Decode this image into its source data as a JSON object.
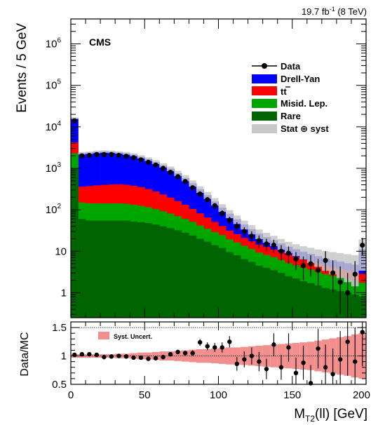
{
  "header": {
    "lumi_main": "19.7 fb",
    "lumi_sup": "-1",
    "lumi_energy": " (8 TeV)",
    "experiment": "CMS"
  },
  "colors": {
    "data": "#000000",
    "drell_yan": "#0000ff",
    "ttbar": "#ff0000",
    "misid": "#00a600",
    "rare": "#006400",
    "stat_syst": "#c8c8c8",
    "ratio_band": "#f28e8e"
  },
  "legend": {
    "data": "Data",
    "drell_yan": "Drell-Yan",
    "ttbar": "tt",
    "misid": "Misid. Lep.",
    "rare": "Rare",
    "stat_syst": "Stat ⊕ syst",
    "syst_uncert": "Syst. Uncert."
  },
  "chart_data": [
    {
      "type": "area",
      "ylabel": "Events / 5 GeV",
      "xlim": [
        0,
        200
      ],
      "ylim": [
        0.25,
        4000000
      ],
      "yscale": "log",
      "y_ticks": [
        {
          "v": 1,
          "label": "1"
        },
        {
          "v": 10,
          "label": "10"
        },
        {
          "v": 100,
          "label": "10",
          "sup": "2"
        },
        {
          "v": 1000,
          "label": "10",
          "sup": "3"
        },
        {
          "v": 10000,
          "label": "10",
          "sup": "4"
        },
        {
          "v": 100000,
          "label": "10",
          "sup": "5"
        },
        {
          "v": 1000000,
          "label": "10",
          "sup": "6"
        }
      ],
      "legend_position": "top-right",
      "bin_width": 5,
      "bin_edges_start": 0,
      "series": [
        {
          "key": "rare",
          "name": "Rare",
          "values": [
            1000,
            60,
            55,
            55,
            55,
            55,
            55,
            55,
            52,
            50,
            48,
            44,
            40,
            36,
            32,
            28,
            24,
            20,
            17,
            14,
            12,
            9.5,
            8,
            6.5,
            5.5,
            4.5,
            4,
            3.5,
            3,
            2.5,
            2.2,
            1.9,
            1.7,
            1.5,
            1.3,
            1.2,
            1.1,
            1.0,
            0.9,
            0.8
          ]
        },
        {
          "key": "misid",
          "name": "Misid. Lep.",
          "values": [
            1300,
            90,
            88,
            88,
            88,
            88,
            88,
            85,
            80,
            75,
            68,
            60,
            52,
            45,
            38,
            32,
            27,
            22,
            18,
            15,
            12.5,
            10,
            8.5,
            7,
            5.8,
            4.8,
            4.2,
            3.7,
            3.2,
            2.7,
            2.4,
            2.1,
            1.9,
            1.7,
            1.5,
            1.35,
            1.25,
            1.15,
            1.05,
            0.95
          ]
        },
        {
          "key": "ttbar",
          "name": "tt",
          "values": [
            1900,
            210,
            230,
            245,
            255,
            265,
            268,
            262,
            248,
            228,
            200,
            172,
            142,
            116,
            92,
            72,
            54,
            40,
            30,
            22,
            16,
            12,
            9.5,
            7.5,
            6.2,
            5.2,
            4.5,
            3.9,
            3.4,
            2.9,
            2.6,
            2.3,
            2.05,
            1.85,
            1.65,
            1.5,
            1.4,
            1.3,
            1.2,
            1.1
          ]
        },
        {
          "key": "drell_yan",
          "name": "Drell-Yan",
          "values": [
            12000,
            1950,
            2000,
            2100,
            2150,
            2100,
            2000,
            1900,
            1750,
            1550,
            1350,
            1150,
            950,
            780,
            600,
            450,
            330,
            230,
            160,
            108,
            72,
            49,
            33,
            23,
            16.5,
            12,
            9.2,
            7.3,
            5.8,
            4.8,
            4.0,
            3.5,
            3.0,
            2.6,
            2.3,
            2.1,
            1.9,
            1.7,
            1.6,
            8.5
          ]
        }
      ],
      "data": {
        "name": "Data",
        "x": [
          2.5,
          7.5,
          12.5,
          17.5,
          22.5,
          27.5,
          32.5,
          37.5,
          42.5,
          47.5,
          52.5,
          57.5,
          62.5,
          67.5,
          72.5,
          77.5,
          82.5,
          87.5,
          92.5,
          97.5,
          102.5,
          107.5,
          112.5,
          117.5,
          122.5,
          127.5,
          132.5,
          137.5,
          142.5,
          147.5,
          152.5,
          157.5,
          162.5,
          167.5,
          172.5,
          177.5,
          182.5,
          187.5,
          192.5,
          197.5
        ],
        "y": [
          14000,
          2000,
          2050,
          2150,
          2150,
          2150,
          2050,
          1950,
          1800,
          1600,
          1400,
          1200,
          1000,
          800,
          630,
          480,
          340,
          240,
          175,
          125,
          82,
          56,
          40,
          30,
          23,
          18,
          15,
          14,
          10,
          9,
          6.5,
          4.5,
          5,
          3.5,
          6,
          3,
          1.8,
          1,
          2.8,
          14
        ],
        "err_lo": [
          500,
          80,
          80,
          80,
          80,
          80,
          80,
          80,
          75,
          70,
          65,
          60,
          55,
          50,
          45,
          40,
          35,
          30,
          25,
          20,
          15,
          12,
          10,
          8,
          7,
          6,
          5,
          5,
          4,
          4,
          3,
          2.5,
          2.5,
          2,
          3,
          2,
          1.5,
          0.8,
          2,
          6
        ],
        "err_hi": [
          500,
          80,
          80,
          80,
          80,
          80,
          80,
          80,
          75,
          70,
          65,
          60,
          55,
          50,
          45,
          40,
          35,
          30,
          25,
          20,
          15,
          12,
          10,
          8,
          7,
          6,
          5,
          5,
          4,
          4,
          3,
          3,
          3,
          3,
          4,
          3,
          2.5,
          2,
          3,
          7
        ]
      },
      "stat_syst_frac": [
        0.05,
        0.07,
        0.07,
        0.07,
        0.07,
        0.07,
        0.07,
        0.08,
        0.08,
        0.09,
        0.1,
        0.11,
        0.12,
        0.13,
        0.15,
        0.16,
        0.17,
        0.18,
        0.19,
        0.2,
        0.21,
        0.22,
        0.23,
        0.24,
        0.25,
        0.26,
        0.27,
        0.28,
        0.29,
        0.3,
        0.32,
        0.35,
        0.4,
        0.45,
        0.5,
        0.55,
        0.6,
        0.65,
        0.7,
        0.7
      ]
    },
    {
      "type": "scatter",
      "ylabel": "Data/MC",
      "xlabel_main": "M",
      "xlabel_sub": "T2",
      "xlabel_rest": "(ll) [GeV]",
      "xlim": [
        0,
        200
      ],
      "ylim": [
        0.5,
        1.6
      ],
      "y_ticks": [
        {
          "v": 0.5,
          "label": "0.5"
        },
        {
          "v": 1,
          "label": "1"
        },
        {
          "v": 1.5,
          "label": "1.5"
        }
      ],
      "x_ticks": [
        {
          "v": 0,
          "label": "0"
        },
        {
          "v": 50,
          "label": "50"
        },
        {
          "v": 100,
          "label": "100"
        },
        {
          "v": 150,
          "label": "150"
        },
        {
          "v": 200,
          "label": "200"
        }
      ],
      "reference_lines": [
        1.5,
        1.0
      ],
      "band_half_width": [
        0.03,
        0.03,
        0.03,
        0.03,
        0.03,
        0.03,
        0.04,
        0.04,
        0.05,
        0.06,
        0.06,
        0.07,
        0.08,
        0.08,
        0.09,
        0.1,
        0.11,
        0.12,
        0.12,
        0.13,
        0.14,
        0.15,
        0.15,
        0.16,
        0.17,
        0.18,
        0.19,
        0.2,
        0.21,
        0.22,
        0.23,
        0.24,
        0.25,
        0.27,
        0.29,
        0.31,
        0.33,
        0.35,
        0.38,
        0.4
      ],
      "x": [
        2.5,
        7.5,
        12.5,
        17.5,
        22.5,
        27.5,
        32.5,
        37.5,
        42.5,
        47.5,
        52.5,
        57.5,
        62.5,
        67.5,
        72.5,
        77.5,
        82.5,
        87.5,
        92.5,
        97.5,
        102.5,
        107.5,
        112.5,
        117.5,
        122.5,
        127.5,
        132.5,
        137.5,
        142.5,
        147.5,
        152.5,
        157.5,
        162.5,
        167.5,
        172.5,
        177.5,
        182.5,
        187.5,
        192.5,
        197.5
      ],
      "y": [
        1.02,
        1.03,
        1.03,
        1.02,
        0.98,
        0.99,
        1.0,
        0.99,
        0.97,
        0.97,
        0.95,
        0.96,
        0.98,
        1.03,
        1.07,
        1.05,
        1.05,
        1.24,
        1.17,
        1.15,
        1.15,
        1.25,
        0.86,
        0.94,
        1.0,
        0.9,
        0.77,
        1.2,
        0.8,
        1.15,
        0.7,
        0.88,
        0.52,
        1.13,
        0.8,
        0.68,
        0.94,
        1.25,
        0.9,
        1.42
      ],
      "err": [
        0.02,
        0.02,
        0.02,
        0.02,
        0.02,
        0.02,
        0.02,
        0.02,
        0.02,
        0.02,
        0.03,
        0.03,
        0.03,
        0.03,
        0.04,
        0.04,
        0.05,
        0.06,
        0.07,
        0.08,
        0.09,
        0.1,
        0.12,
        0.14,
        0.15,
        0.17,
        0.18,
        0.2,
        0.22,
        0.25,
        0.27,
        0.3,
        0.32,
        0.35,
        0.4,
        0.45,
        0.5,
        0.6,
        0.6,
        0.6
      ]
    }
  ]
}
